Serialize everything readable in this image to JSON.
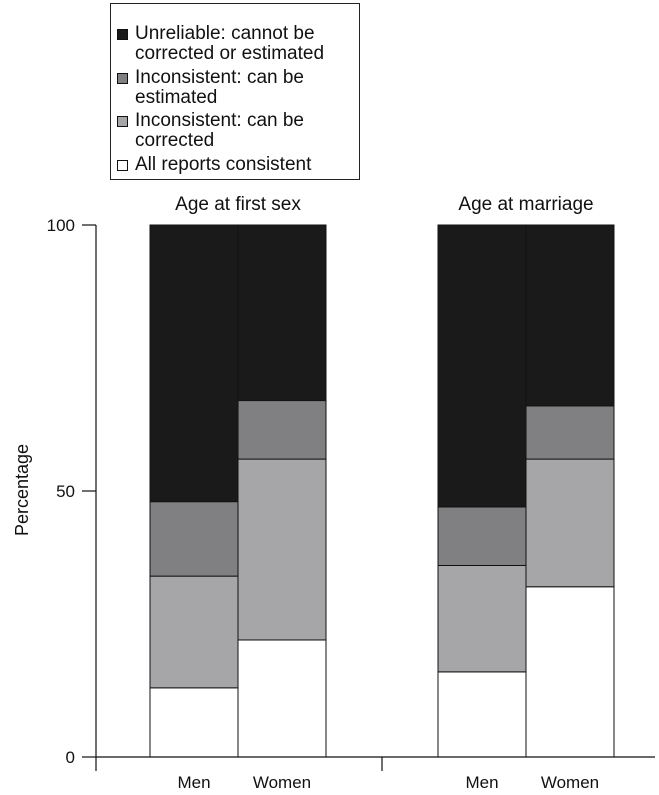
{
  "chart_data": {
    "type": "bar",
    "stacked": true,
    "ylabel": "Percentage",
    "ylim": [
      0,
      100
    ],
    "yticks": [
      "0",
      "50",
      "100"
    ],
    "groups": [
      {
        "title": "Age at first sex",
        "categories": [
          "Men",
          "Women"
        ]
      },
      {
        "title": "Age at marriage",
        "categories": [
          "Men",
          "Women"
        ]
      }
    ],
    "series": [
      {
        "name": "All reports consistent",
        "color": "#ffffff",
        "values": [
          13,
          22,
          16,
          32
        ]
      },
      {
        "name": "Inconsistent: can be corrected",
        "color": "#a6a6a8",
        "values": [
          21,
          34,
          20,
          24
        ]
      },
      {
        "name": "Inconsistent: can be estimated",
        "color": "#808083",
        "values": [
          14,
          11,
          11,
          10
        ]
      },
      {
        "name": "Unreliable: cannot be corrected or estimated",
        "color": "#1a1a1a",
        "values": [
          52,
          33,
          53,
          34
        ]
      }
    ]
  },
  "legend": {
    "items": [
      {
        "label": "Unreliable: cannot be corrected or estimated",
        "color": "#1a1a1a"
      },
      {
        "label": "Inconsistent: can be estimated",
        "color": "#808083"
      },
      {
        "label": "Inconsistent: can be corrected",
        "color": "#a6a6a8"
      },
      {
        "label": "All reports consistent",
        "color": "#ffffff"
      }
    ]
  }
}
